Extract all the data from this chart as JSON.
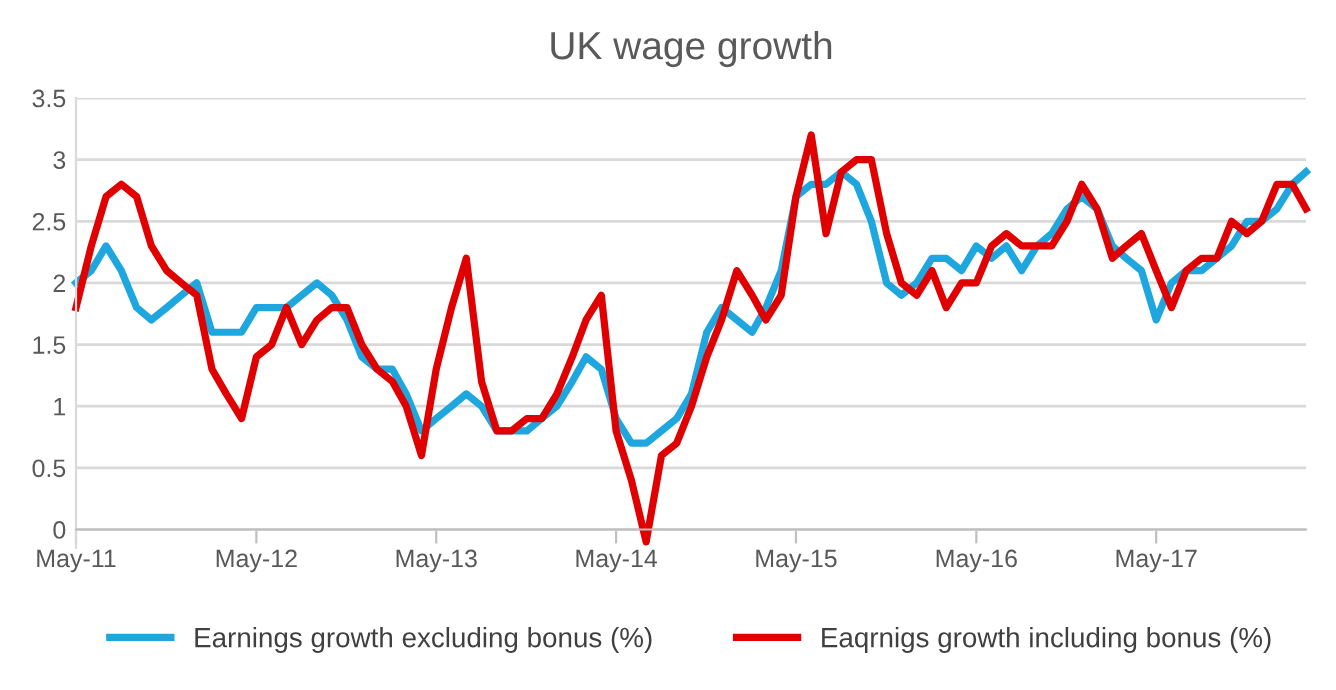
{
  "chart_data": {
    "type": "line",
    "title": "UK wage growth",
    "x": [
      "2011-05",
      "2011-06",
      "2011-07",
      "2011-08",
      "2011-09",
      "2011-10",
      "2011-11",
      "2011-12",
      "2012-01",
      "2012-02",
      "2012-03",
      "2012-04",
      "2012-05",
      "2012-06",
      "2012-07",
      "2012-08",
      "2012-09",
      "2012-10",
      "2012-11",
      "2012-12",
      "2013-01",
      "2013-02",
      "2013-03",
      "2013-04",
      "2013-05",
      "2013-06",
      "2013-07",
      "2013-08",
      "2013-09",
      "2013-10",
      "2013-11",
      "2013-12",
      "2014-01",
      "2014-02",
      "2014-03",
      "2014-04",
      "2014-05",
      "2014-06",
      "2014-07",
      "2014-08",
      "2014-09",
      "2014-10",
      "2014-11",
      "2014-12",
      "2015-01",
      "2015-02",
      "2015-03",
      "2015-04",
      "2015-05",
      "2015-06",
      "2015-07",
      "2015-08",
      "2015-09",
      "2015-10",
      "2015-11",
      "2015-12",
      "2016-01",
      "2016-02",
      "2016-03",
      "2016-04",
      "2016-05",
      "2016-06",
      "2016-07",
      "2016-08",
      "2016-09",
      "2016-10",
      "2016-11",
      "2016-12",
      "2017-01",
      "2017-02",
      "2017-03",
      "2017-04",
      "2017-05",
      "2017-06",
      "2017-07",
      "2017-08",
      "2017-09",
      "2017-10",
      "2017-11",
      "2017-12",
      "2018-01",
      "2018-02",
      "2018-03"
    ],
    "series": [
      {
        "name": "Earnings growth excluding bonus (%)",
        "color": "#1ea6df",
        "values": [
          2.0,
          2.1,
          2.3,
          2.1,
          1.8,
          1.7,
          1.8,
          1.9,
          2.0,
          1.6,
          1.6,
          1.6,
          1.8,
          1.8,
          1.8,
          1.9,
          2.0,
          1.9,
          1.7,
          1.4,
          1.3,
          1.3,
          1.1,
          0.8,
          0.9,
          1.0,
          1.1,
          1.0,
          0.8,
          0.8,
          0.8,
          0.9,
          1.0,
          1.2,
          1.4,
          1.3,
          0.9,
          0.7,
          0.7,
          0.8,
          0.9,
          1.1,
          1.6,
          1.8,
          1.7,
          1.6,
          1.8,
          2.1,
          2.7,
          2.8,
          2.8,
          2.9,
          2.8,
          2.5,
          2.0,
          1.9,
          2.0,
          2.2,
          2.2,
          2.1,
          2.3,
          2.2,
          2.3,
          2.1,
          2.3,
          2.4,
          2.6,
          2.7,
          2.6,
          2.3,
          2.2,
          2.1,
          1.7,
          2.0,
          2.1,
          2.1,
          2.2,
          2.3,
          2.5,
          2.5,
          2.6,
          2.8,
          2.9
        ]
      },
      {
        "name": "Eaqrnigs growth including bonus (%)",
        "color": "#e00000",
        "values": [
          1.8,
          2.3,
          2.7,
          2.8,
          2.7,
          2.3,
          2.1,
          2.0,
          1.9,
          1.3,
          1.1,
          0.9,
          1.4,
          1.5,
          1.8,
          1.5,
          1.7,
          1.8,
          1.8,
          1.5,
          1.3,
          1.2,
          1.0,
          0.6,
          1.3,
          1.8,
          2.2,
          1.2,
          0.8,
          0.8,
          0.9,
          0.9,
          1.1,
          1.4,
          1.7,
          1.9,
          0.8,
          0.4,
          -0.1,
          0.6,
          0.7,
          1.0,
          1.4,
          1.7,
          2.1,
          1.9,
          1.7,
          1.9,
          2.7,
          3.2,
          2.4,
          2.9,
          3.0,
          3.0,
          2.4,
          2.0,
          1.9,
          2.1,
          1.8,
          2.0,
          2.0,
          2.3,
          2.4,
          2.3,
          2.3,
          2.3,
          2.5,
          2.8,
          2.6,
          2.2,
          2.3,
          2.4,
          2.1,
          1.8,
          2.1,
          2.2,
          2.2,
          2.5,
          2.4,
          2.5,
          2.8,
          2.8,
          2.6
        ]
      }
    ],
    "xlim": [
      "2011-05",
      "2018-03"
    ],
    "xticks": [
      {
        "value": "2011-05",
        "label": "May-11"
      },
      {
        "value": "2012-05",
        "label": "May-12"
      },
      {
        "value": "2013-05",
        "label": "May-13"
      },
      {
        "value": "2014-05",
        "label": "May-14"
      },
      {
        "value": "2015-05",
        "label": "May-15"
      },
      {
        "value": "2016-05",
        "label": "May-16"
      },
      {
        "value": "2017-05",
        "label": "May-17"
      }
    ],
    "ylim": [
      -0.15,
      3.5
    ],
    "yticks": [
      0,
      0.5,
      1,
      1.5,
      2,
      2.5,
      3,
      3.5
    ],
    "grid": "y",
    "legend": "bottom",
    "line_style": "solid",
    "marker": "none"
  }
}
